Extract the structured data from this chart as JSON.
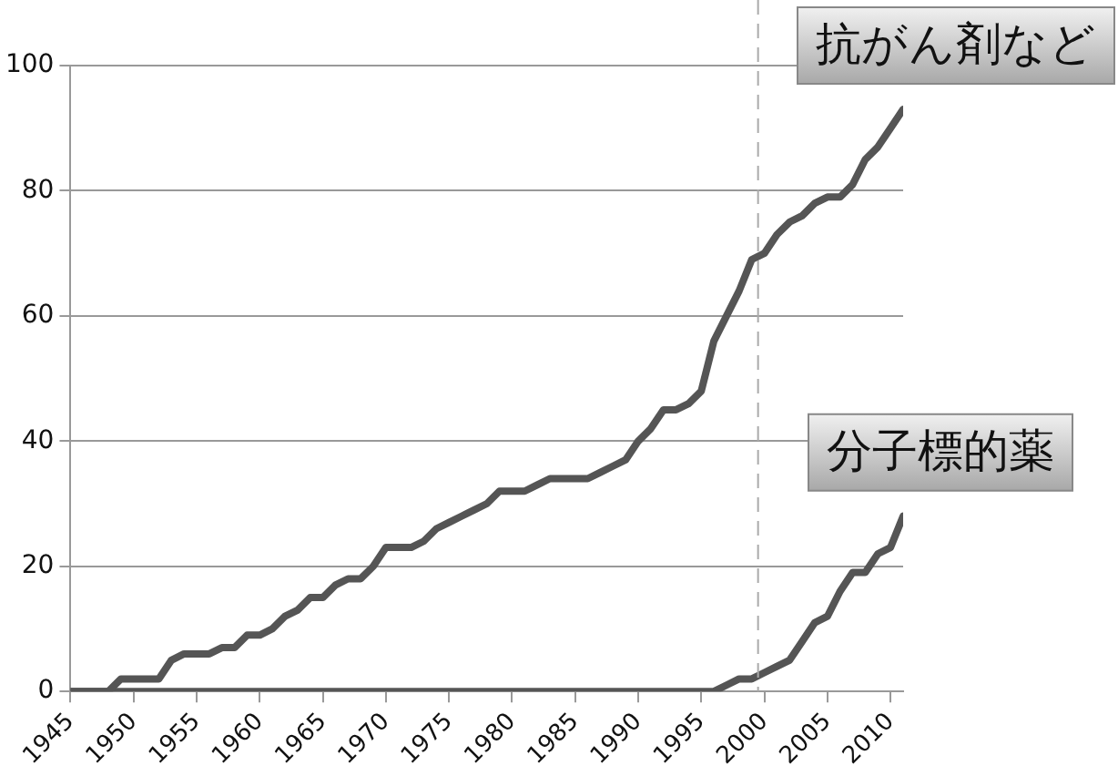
{
  "chart_data": {
    "type": "line",
    "x": [
      1945,
      1946,
      1947,
      1948,
      1949,
      1950,
      1951,
      1952,
      1953,
      1954,
      1955,
      1956,
      1957,
      1958,
      1959,
      1960,
      1961,
      1962,
      1963,
      1964,
      1965,
      1966,
      1967,
      1968,
      1969,
      1970,
      1971,
      1972,
      1973,
      1974,
      1975,
      1976,
      1977,
      1978,
      1979,
      1980,
      1981,
      1982,
      1983,
      1984,
      1985,
      1986,
      1987,
      1988,
      1989,
      1990,
      1991,
      1992,
      1993,
      1994,
      1995,
      1996,
      1997,
      1998,
      1999,
      2000,
      2001,
      2002,
      2003,
      2004,
      2005,
      2006,
      2007,
      2008,
      2009,
      2010,
      2011
    ],
    "series": [
      {
        "name": "抗がん剤など",
        "color": "#555555",
        "values": [
          0,
          0,
          0,
          0,
          2,
          2,
          2,
          2,
          5,
          6,
          6,
          6,
          7,
          7,
          9,
          9,
          10,
          12,
          13,
          15,
          15,
          17,
          18,
          18,
          20,
          23,
          23,
          23,
          24,
          26,
          27,
          28,
          29,
          30,
          32,
          32,
          32,
          33,
          34,
          34,
          34,
          34,
          35,
          36,
          37,
          40,
          42,
          45,
          45,
          46,
          48,
          56,
          60,
          64,
          69,
          70,
          73,
          75,
          76,
          78,
          79,
          79,
          81,
          85,
          87,
          90,
          93
        ]
      },
      {
        "name": "分子標的薬",
        "color": "#555555",
        "values": [
          0,
          0,
          0,
          0,
          0,
          0,
          0,
          0,
          0,
          0,
          0,
          0,
          0,
          0,
          0,
          0,
          0,
          0,
          0,
          0,
          0,
          0,
          0,
          0,
          0,
          0,
          0,
          0,
          0,
          0,
          0,
          0,
          0,
          0,
          0,
          0,
          0,
          0,
          0,
          0,
          0,
          0,
          0,
          0,
          0,
          0,
          0,
          0,
          0,
          0,
          0,
          0,
          1,
          2,
          2,
          3,
          4,
          5,
          8,
          11,
          12,
          16,
          19,
          19,
          22,
          23,
          28
        ]
      }
    ],
    "xlim": [
      1945,
      2011
    ],
    "xticks": [
      1945,
      1950,
      1955,
      1960,
      1965,
      1970,
      1975,
      1980,
      1985,
      1990,
      1995,
      2000,
      2005,
      2010
    ],
    "ylim": [
      0,
      100
    ],
    "yticks": [
      0,
      20,
      40,
      60,
      80,
      100
    ],
    "grid": "y",
    "legend": false,
    "marker": "none",
    "line_style": "solid",
    "ref_lines": [
      {
        "axis": "x",
        "value": 1999.5,
        "color": "#aaaaaa",
        "line_style": "dashed"
      }
    ]
  }
}
